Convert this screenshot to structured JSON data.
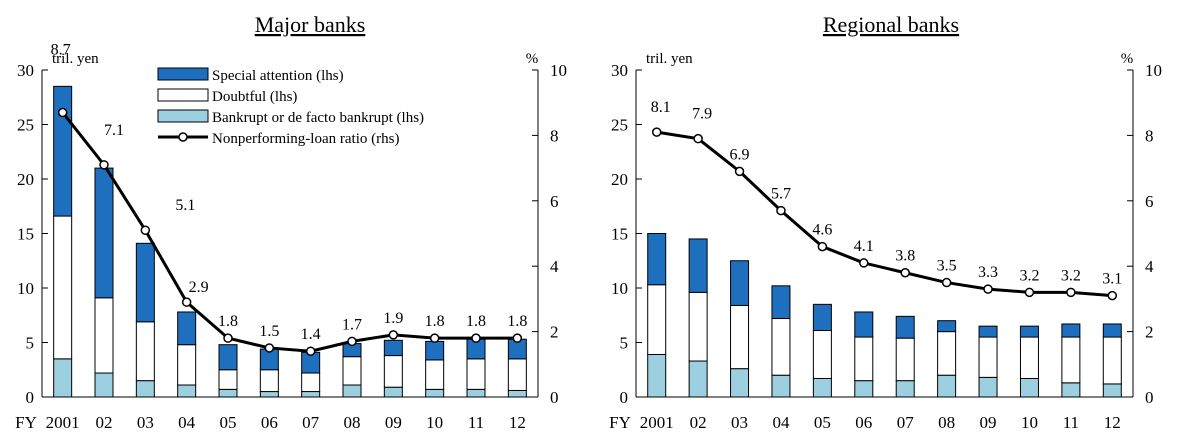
{
  "colors": {
    "special": "#1f6fbf",
    "doubtful": "#ffffff",
    "bankrupt": "#9ccfe0",
    "line": "#000000",
    "bar_stroke": "#000000"
  },
  "x_prefix": "FY",
  "legend": {
    "special": "Special attention (lhs)",
    "doubtful": "Doubtful (lhs)",
    "bankrupt": "Bankrupt or de facto bankrupt (lhs)",
    "ratio": "Nonperforming-loan ratio (rhs)"
  },
  "chart_data": [
    {
      "type": "bar",
      "title": "Major banks",
      "ylabel_left": "tril. yen",
      "ylabel_right": "%",
      "ylim_left": [
        0,
        30
      ],
      "ylim_right": [
        0,
        10
      ],
      "yticks_left": [
        "0",
        "5",
        "10",
        "15",
        "20",
        "25",
        "30"
      ],
      "yticks_right": [
        "0",
        "2",
        "4",
        "6",
        "8",
        "10"
      ],
      "categories": [
        "2001",
        "02",
        "03",
        "04",
        "05",
        "06",
        "07",
        "08",
        "09",
        "10",
        "11",
        "12"
      ],
      "series": [
        {
          "name": "Bankrupt or de facto bankrupt (lhs)",
          "values": [
            3.5,
            2.2,
            1.5,
            1.1,
            0.7,
            0.5,
            0.5,
            1.1,
            0.9,
            0.7,
            0.7,
            0.6
          ]
        },
        {
          "name": "Doubtful (lhs)",
          "values": [
            13.1,
            6.9,
            5.4,
            3.7,
            1.8,
            2.0,
            1.7,
            2.6,
            2.9,
            2.7,
            2.8,
            2.9
          ]
        },
        {
          "name": "Special attention (lhs)",
          "values": [
            11.9,
            11.9,
            7.2,
            3.0,
            2.3,
            1.9,
            1.9,
            1.2,
            1.4,
            1.7,
            1.8,
            1.8
          ]
        },
        {
          "name": "Nonperforming-loan ratio (rhs)",
          "axis": "right",
          "values": [
            8.7,
            7.1,
            5.1,
            2.9,
            1.8,
            1.5,
            1.4,
            1.7,
            1.9,
            1.8,
            1.8,
            1.8
          ],
          "labels": [
            "8.7",
            "7.1",
            "5.1",
            "2.9",
            "1.8",
            "1.5",
            "1.4",
            "1.7",
            "1.9",
            "1.8",
            "1.8",
            "1.8"
          ]
        }
      ]
    },
    {
      "type": "bar",
      "title": "Regional banks",
      "ylabel_left": "tril. yen",
      "ylabel_right": "%",
      "ylim_left": [
        0,
        30
      ],
      "ylim_right": [
        0,
        10
      ],
      "yticks_left": [
        "0",
        "5",
        "10",
        "15",
        "20",
        "25",
        "30"
      ],
      "yticks_right": [
        "0",
        "2",
        "4",
        "6",
        "8",
        "10"
      ],
      "categories": [
        "2001",
        "02",
        "03",
        "04",
        "05",
        "06",
        "07",
        "08",
        "09",
        "10",
        "11",
        "12"
      ],
      "series": [
        {
          "name": "Bankrupt or de facto bankrupt (lhs)",
          "values": [
            3.9,
            3.3,
            2.6,
            2.0,
            1.7,
            1.5,
            1.5,
            2.0,
            1.8,
            1.7,
            1.3,
            1.2
          ]
        },
        {
          "name": "Doubtful (lhs)",
          "values": [
            6.4,
            6.3,
            5.8,
            5.2,
            4.4,
            4.0,
            3.9,
            4.0,
            3.7,
            3.8,
            4.2,
            4.3
          ]
        },
        {
          "name": "Special attention (lhs)",
          "values": [
            4.7,
            4.9,
            4.1,
            3.0,
            2.4,
            2.3,
            2.0,
            1.0,
            1.0,
            1.0,
            1.2,
            1.2
          ]
        },
        {
          "name": "Nonperforming-loan ratio (rhs)",
          "axis": "right",
          "values": [
            8.1,
            7.9,
            6.9,
            5.7,
            4.6,
            4.1,
            3.8,
            3.5,
            3.3,
            3.2,
            3.2,
            3.1
          ],
          "labels": [
            "8.1",
            "7.9",
            "6.9",
            "5.7",
            "4.6",
            "4.1",
            "3.8",
            "3.5",
            "3.3",
            "3.2",
            "3.2",
            "3.1"
          ]
        }
      ]
    }
  ]
}
